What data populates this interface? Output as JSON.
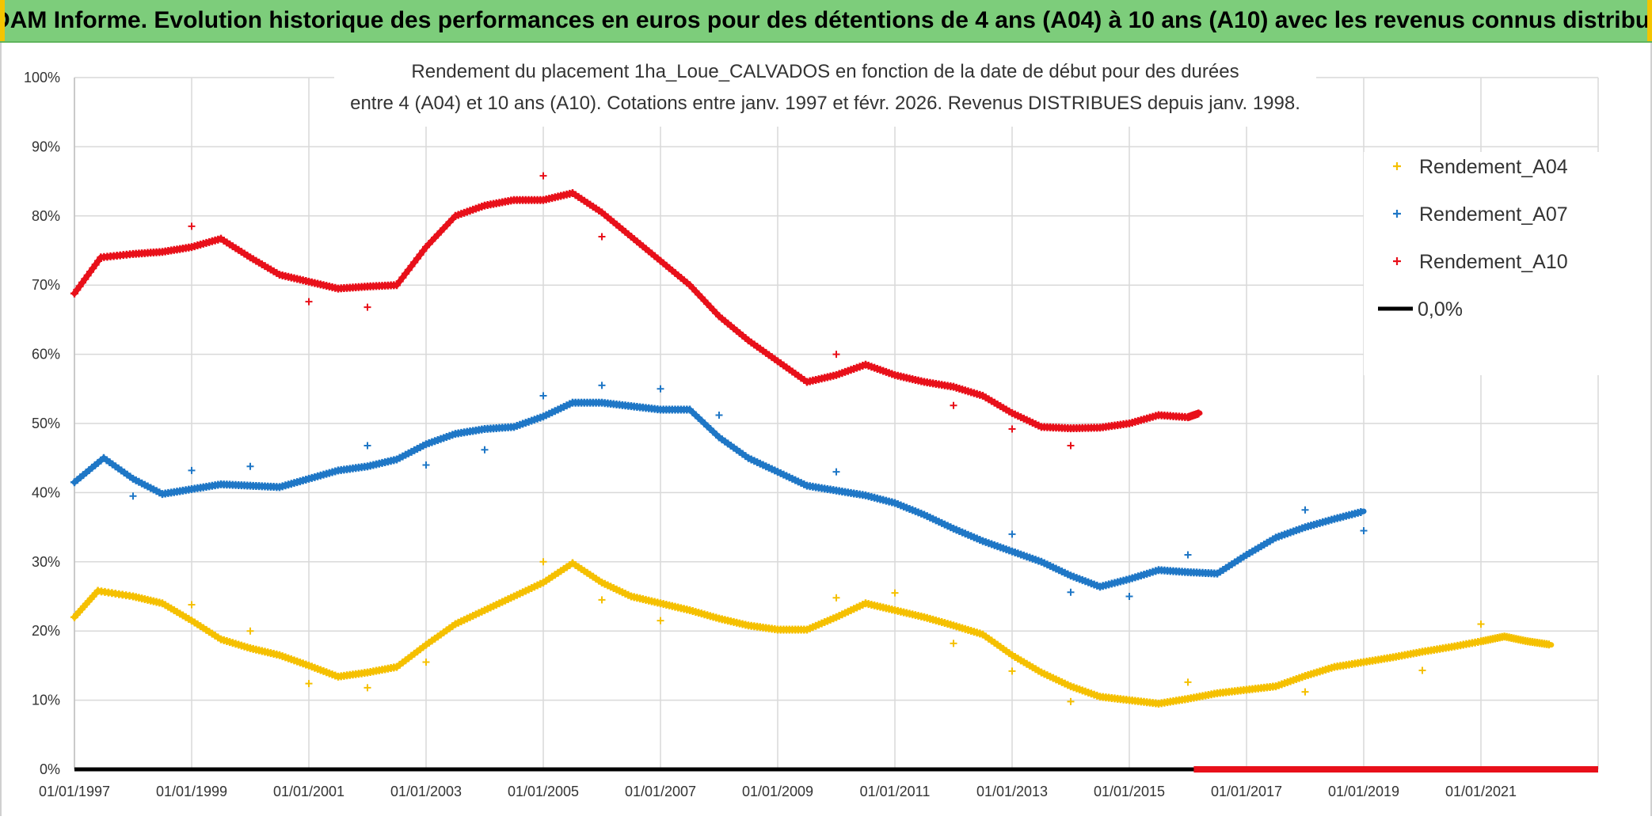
{
  "header": {
    "title": "ADAM Informe. Evolution historique des performances en euros pour des détentions de 4 ans (A04) à 10 ans (A10) avec les revenus connus distribués"
  },
  "chart_data": {
    "type": "scatter",
    "title_line1": "Rendement du placement 1ha_Loue_CALVADOS en fonction de la date de début pour des durées",
    "title_line2": "entre 4 (A04) et 10 ans (A10). Cotations entre janv. 1997 et févr. 2026. Revenus DISTRIBUES depuis janv. 1998.",
    "xlabel": "",
    "ylabel": "",
    "xlim": [
      1997.0,
      2023.0
    ],
    "ylim": [
      0,
      100
    ],
    "y_ticks": [
      "0%",
      "10%",
      "20%",
      "30%",
      "40%",
      "50%",
      "60%",
      "70%",
      "80%",
      "90%",
      "100%"
    ],
    "x_ticks": [
      {
        "year": 1997,
        "label": "01/01/1997"
      },
      {
        "year": 1999,
        "label": "01/01/1999"
      },
      {
        "year": 2001,
        "label": "01/01/2001"
      },
      {
        "year": 2003,
        "label": "01/01/2003"
      },
      {
        "year": 2005,
        "label": "01/01/2005"
      },
      {
        "year": 2007,
        "label": "01/01/2007"
      },
      {
        "year": 2009,
        "label": "01/01/2009"
      },
      {
        "year": 2011,
        "label": "01/01/2011"
      },
      {
        "year": 2013,
        "label": "01/01/2013"
      },
      {
        "year": 2015,
        "label": "01/01/2015"
      },
      {
        "year": 2017,
        "label": "01/01/2017"
      },
      {
        "year": 2019,
        "label": "01/01/2019"
      },
      {
        "year": 2021,
        "label": "01/01/2021"
      }
    ],
    "grid": true,
    "legend_position": "right",
    "series": [
      {
        "name": "Rendement_A04",
        "color": "#f5c000",
        "x": [
          1997.0,
          1997.4,
          1998.0,
          1998.5,
          1999.0,
          1999.5,
          2000.0,
          2000.5,
          2001.0,
          2001.5,
          2002.0,
          2002.5,
          2003.0,
          2003.5,
          2004.0,
          2004.5,
          2005.0,
          2005.5,
          2006.0,
          2006.5,
          2007.0,
          2007.5,
          2008.0,
          2008.5,
          2009.0,
          2009.5,
          2010.0,
          2010.5,
          2011.0,
          2011.5,
          2012.0,
          2012.5,
          2013.0,
          2013.5,
          2014.0,
          2014.5,
          2015.0,
          2015.5,
          2016.0,
          2016.5,
          2017.0,
          2017.5,
          2018.0,
          2018.5,
          2019.0,
          2019.5,
          2020.0,
          2020.5,
          2021.0,
          2021.4,
          2021.8,
          2022.2
        ],
        "y": [
          22.0,
          25.8,
          25.0,
          24.0,
          21.5,
          18.8,
          17.5,
          16.5,
          15.0,
          13.4,
          14.0,
          14.8,
          18.0,
          21.0,
          23.0,
          25.0,
          27.0,
          29.8,
          27.0,
          25.0,
          24.0,
          23.0,
          21.8,
          20.8,
          20.2,
          20.2,
          22.0,
          24.0,
          23.0,
          22.0,
          20.8,
          19.5,
          16.5,
          14.0,
          12.0,
          10.5,
          10.0,
          9.5,
          10.2,
          11.0,
          11.5,
          12.0,
          13.5,
          14.8,
          15.5,
          16.2,
          17.0,
          17.7,
          18.5,
          19.2,
          18.5,
          18.0
        ]
      },
      {
        "name": "Rendement_A07",
        "color": "#1f77c6",
        "x": [
          1997.0,
          1997.5,
          1998.0,
          1998.5,
          1999.0,
          1999.5,
          2000.0,
          2000.5,
          2001.0,
          2001.5,
          2002.0,
          2002.5,
          2003.0,
          2003.5,
          2004.0,
          2004.5,
          2005.0,
          2005.5,
          2006.0,
          2006.5,
          2007.0,
          2007.5,
          2008.0,
          2008.5,
          2009.0,
          2009.5,
          2010.0,
          2010.5,
          2011.0,
          2011.5,
          2012.0,
          2012.5,
          2013.0,
          2013.5,
          2014.0,
          2014.5,
          2015.0,
          2015.5,
          2016.0,
          2016.5,
          2017.0,
          2017.5,
          2018.0,
          2018.5,
          2019.0
        ],
        "y": [
          41.5,
          45.0,
          42.0,
          39.8,
          40.5,
          41.2,
          41.0,
          40.8,
          42.0,
          43.2,
          43.8,
          44.8,
          47.0,
          48.5,
          49.2,
          49.5,
          51.0,
          53.0,
          53.0,
          52.5,
          52.0,
          52.0,
          48.0,
          45.0,
          43.0,
          41.0,
          40.3,
          39.6,
          38.5,
          36.8,
          34.8,
          33.0,
          31.5,
          30.0,
          28.0,
          26.4,
          27.5,
          28.8,
          28.5,
          28.3,
          31.0,
          33.5,
          35.0,
          36.2,
          37.3
        ]
      },
      {
        "name": "Rendement_A10",
        "color": "#e8101a",
        "x": [
          1997.0,
          1997.45,
          1998.0,
          1998.5,
          1999.0,
          1999.5,
          2000.0,
          2000.5,
          2001.0,
          2001.5,
          2002.0,
          2002.5,
          2003.0,
          2003.5,
          2004.0,
          2004.5,
          2005.0,
          2005.5,
          2006.0,
          2006.5,
          2007.0,
          2007.5,
          2008.0,
          2008.5,
          2009.0,
          2009.5,
          2010.0,
          2010.5,
          2011.0,
          2011.5,
          2012.0,
          2012.5,
          2013.0,
          2013.5,
          2014.0,
          2014.5,
          2015.0,
          2015.5,
          2016.0,
          2016.2
        ],
        "y": [
          68.8,
          74.0,
          74.5,
          74.8,
          75.5,
          76.7,
          74.0,
          71.5,
          70.5,
          69.5,
          69.8,
          70.0,
          75.5,
          80.0,
          81.5,
          82.3,
          82.3,
          83.3,
          80.5,
          77.0,
          73.5,
          70.0,
          65.5,
          62.0,
          59.0,
          56.0,
          57.0,
          58.5,
          57.0,
          56.0,
          55.3,
          54.0,
          51.5,
          49.5,
          49.3,
          49.4,
          50.0,
          51.2,
          50.9,
          51.5
        ]
      },
      {
        "name": "0,0%",
        "color": "#000000",
        "x": [
          1997.0,
          2023.0
        ],
        "y": [
          0,
          0
        ]
      }
    ],
    "outliers": [
      {
        "series": "Rendement_A04",
        "x": 1999.0,
        "y": 23.8
      },
      {
        "series": "Rendement_A04",
        "x": 2000.0,
        "y": 20.0
      },
      {
        "series": "Rendement_A04",
        "x": 2001.0,
        "y": 12.4
      },
      {
        "series": "Rendement_A04",
        "x": 2002.0,
        "y": 11.8
      },
      {
        "series": "Rendement_A04",
        "x": 2003.0,
        "y": 15.5
      },
      {
        "series": "Rendement_A04",
        "x": 2005.0,
        "y": 30.0
      },
      {
        "series": "Rendement_A04",
        "x": 2006.0,
        "y": 24.5
      },
      {
        "series": "Rendement_A04",
        "x": 2007.0,
        "y": 21.5
      },
      {
        "series": "Rendement_A04",
        "x": 2010.0,
        "y": 24.8
      },
      {
        "series": "Rendement_A04",
        "x": 2011.0,
        "y": 25.5
      },
      {
        "series": "Rendement_A04",
        "x": 2012.0,
        "y": 18.2
      },
      {
        "series": "Rendement_A04",
        "x": 2013.0,
        "y": 14.2
      },
      {
        "series": "Rendement_A04",
        "x": 2014.0,
        "y": 9.8
      },
      {
        "series": "Rendement_A04",
        "x": 2016.0,
        "y": 12.6
      },
      {
        "series": "Rendement_A04",
        "x": 2018.0,
        "y": 11.2
      },
      {
        "series": "Rendement_A04",
        "x": 2020.0,
        "y": 14.3
      },
      {
        "series": "Rendement_A04",
        "x": 2021.0,
        "y": 21.0
      },
      {
        "series": "Rendement_A07",
        "x": 1998.0,
        "y": 39.5
      },
      {
        "series": "Rendement_A07",
        "x": 1999.0,
        "y": 43.2
      },
      {
        "series": "Rendement_A07",
        "x": 2000.0,
        "y": 43.8
      },
      {
        "series": "Rendement_A07",
        "x": 2002.0,
        "y": 46.8
      },
      {
        "series": "Rendement_A07",
        "x": 2003.0,
        "y": 44.0
      },
      {
        "series": "Rendement_A07",
        "x": 2004.0,
        "y": 46.2
      },
      {
        "series": "Rendement_A07",
        "x": 2005.0,
        "y": 54.0
      },
      {
        "series": "Rendement_A07",
        "x": 2006.0,
        "y": 55.5
      },
      {
        "series": "Rendement_A07",
        "x": 2007.0,
        "y": 55.0
      },
      {
        "series": "Rendement_A07",
        "x": 2008.0,
        "y": 51.2
      },
      {
        "series": "Rendement_A07",
        "x": 2010.0,
        "y": 43.0
      },
      {
        "series": "Rendement_A07",
        "x": 2013.0,
        "y": 34.0
      },
      {
        "series": "Rendement_A07",
        "x": 2014.0,
        "y": 25.6
      },
      {
        "series": "Rendement_A07",
        "x": 2015.0,
        "y": 25.0
      },
      {
        "series": "Rendement_A07",
        "x": 2016.0,
        "y": 31.0
      },
      {
        "series": "Rendement_A07",
        "x": 2018.0,
        "y": 37.5
      },
      {
        "series": "Rendement_A07",
        "x": 2019.0,
        "y": 34.5
      },
      {
        "series": "Rendement_A10",
        "x": 1999.0,
        "y": 78.5
      },
      {
        "series": "Rendement_A10",
        "x": 2001.0,
        "y": 67.6
      },
      {
        "series": "Rendement_A10",
        "x": 2002.0,
        "y": 66.8
      },
      {
        "series": "Rendement_A10",
        "x": 2005.0,
        "y": 85.8
      },
      {
        "series": "Rendement_A10",
        "x": 2006.0,
        "y": 77.0
      },
      {
        "series": "Rendement_A10",
        "x": 2010.0,
        "y": 60.0
      },
      {
        "series": "Rendement_A10",
        "x": 2012.0,
        "y": 52.6
      },
      {
        "series": "Rendement_A10",
        "x": 2013.0,
        "y": 49.2
      },
      {
        "series": "Rendement_A10",
        "x": 2014.0,
        "y": 46.8
      }
    ],
    "red_zero_band": {
      "x_start": 2016.1,
      "x_end": 2023.0,
      "y": 0
    }
  }
}
